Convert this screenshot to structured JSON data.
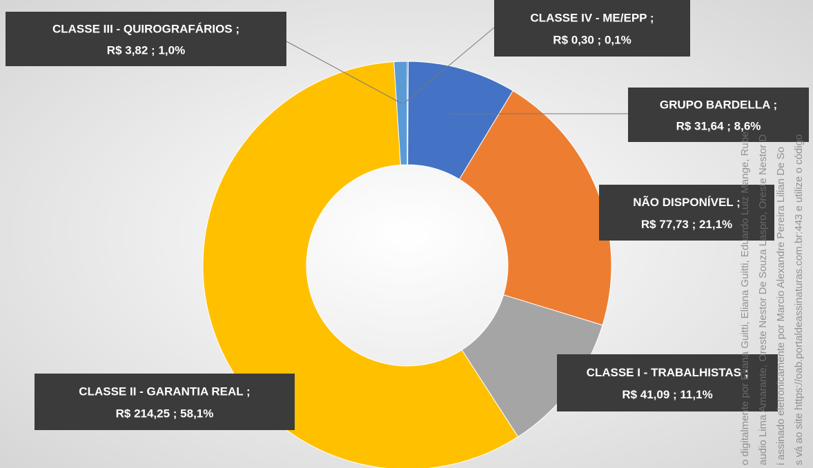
{
  "chart_data": {
    "type": "donut",
    "categories": [
      "CLASSE IV - ME/EPP ;",
      "GRUPO BARDELLA ;",
      "NÃO DISPONÍVEL ;",
      "CLASSE I - TRABALHISTAS ;",
      "CLASSE II - GARANTIA REAL ;",
      "CLASSE III - QUIROGRAFÁRIOS ;"
    ],
    "values": [
      0.3,
      31.64,
      77.73,
      41.09,
      214.25,
      3.82
    ],
    "value_labels": [
      "R$ 0,30 ; 0,1%",
      "R$ 31,64 ; 8,6%",
      "R$ 77,73 ; 21,1%",
      "R$ 41,09 ; 11,1%",
      "R$ 214,25 ; 58,1%",
      "R$ 3,82 ; 1,0%"
    ],
    "colors": [
      "#264478",
      "#4472c4",
      "#ed7d31",
      "#a5a5a5",
      "#ffc000",
      "#5b9bd5"
    ]
  },
  "watermark": [
    "o digitalmente por Eliana Guitti, Eliana Guitti, Eduardo Luiz Mange, Rube",
    "audio Lima Amarante, Oreste Nestor De Souza Laspro, Oreste Nestor D",
    "i assinado eletronicamente por Marcio Alexandre Pereira Lilian De So",
    "s vá ao site https://oab.portaldeassinaturas.com.br:443 e utilize o código"
  ]
}
